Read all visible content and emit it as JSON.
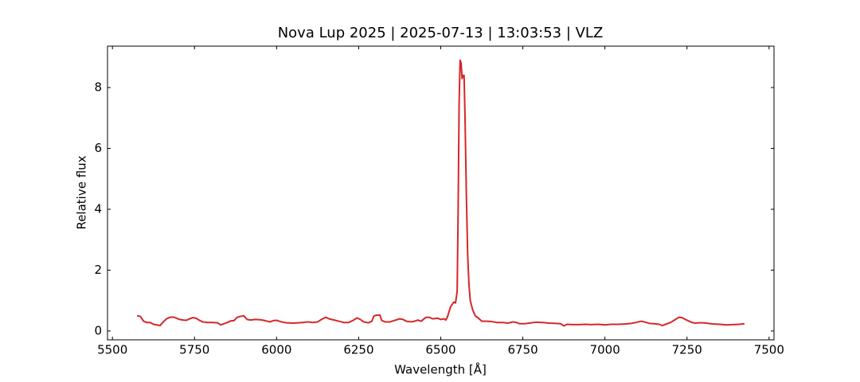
{
  "chart_data": {
    "type": "line",
    "title": "Nova Lup 2025 | 2025-07-13 | 13:03:53 | VLZ",
    "xlabel": "Wavelength [Å]",
    "ylabel": "Relative flux",
    "xlim": [
      5485,
      7515
    ],
    "ylim": [
      -0.29,
      9.36
    ],
    "xticks": [
      5500,
      5750,
      6000,
      6250,
      6500,
      6750,
      7000,
      7250,
      7500
    ],
    "yticks": [
      0,
      2,
      4,
      6,
      8
    ],
    "grid": false,
    "series": [
      {
        "color": "#d62728",
        "x": [
          5575,
          5585,
          5595,
          5605,
          5615,
          5625,
          5635,
          5645,
          5655,
          5665,
          5675,
          5685,
          5695,
          5705,
          5715,
          5725,
          5735,
          5745,
          5755,
          5765,
          5775,
          5790,
          5805,
          5820,
          5830,
          5840,
          5850,
          5860,
          5870,
          5880,
          5890,
          5900,
          5910,
          5920,
          5935,
          5950,
          5965,
          5980,
          5990,
          6000,
          6015,
          6030,
          6050,
          6065,
          6080,
          6095,
          6110,
          6125,
          6140,
          6150,
          6160,
          6175,
          6190,
          6205,
          6220,
          6235,
          6245,
          6255,
          6265,
          6280,
          6290,
          6297,
          6305,
          6315,
          6320,
          6330,
          6345,
          6360,
          6375,
          6385,
          6395,
          6410,
          6420,
          6430,
          6440,
          6455,
          6465,
          6475,
          6490,
          6500,
          6510,
          6515,
          6520,
          6530,
          6540,
          6545,
          6550,
          6553,
          6556,
          6559,
          6562,
          6565,
          6568,
          6571,
          6574,
          6578,
          6582,
          6586,
          6590,
          6597,
          6605,
          6615,
          6625,
          6640,
          6655,
          6670,
          6690,
          6705,
          6720,
          6730,
          6740,
          6755,
          6770,
          6790,
          6810,
          6830,
          6850,
          6865,
          6875,
          6885,
          6900,
          6920,
          6940,
          6960,
          6980,
          7000,
          7020,
          7040,
          7060,
          7080,
          7095,
          7110,
          7120,
          7135,
          7150,
          7165,
          7175,
          7185,
          7200,
          7215,
          7225,
          7235,
          7245,
          7255,
          7265,
          7275,
          7285,
          7300,
          7315,
          7330,
          7350,
          7370,
          7390,
          7410,
          7425
        ],
        "values": [
          0.5,
          0.48,
          0.32,
          0.28,
          0.28,
          0.22,
          0.2,
          0.18,
          0.3,
          0.4,
          0.45,
          0.46,
          0.42,
          0.38,
          0.36,
          0.35,
          0.4,
          0.44,
          0.42,
          0.35,
          0.3,
          0.28,
          0.28,
          0.27,
          0.2,
          0.24,
          0.28,
          0.33,
          0.34,
          0.45,
          0.48,
          0.5,
          0.38,
          0.36,
          0.38,
          0.37,
          0.34,
          0.3,
          0.34,
          0.35,
          0.3,
          0.27,
          0.26,
          0.27,
          0.28,
          0.3,
          0.28,
          0.3,
          0.4,
          0.45,
          0.4,
          0.36,
          0.32,
          0.28,
          0.28,
          0.36,
          0.43,
          0.38,
          0.3,
          0.27,
          0.32,
          0.5,
          0.52,
          0.52,
          0.35,
          0.3,
          0.3,
          0.35,
          0.4,
          0.38,
          0.32,
          0.3,
          0.32,
          0.36,
          0.32,
          0.45,
          0.45,
          0.4,
          0.42,
          0.38,
          0.4,
          0.36,
          0.45,
          0.8,
          0.95,
          0.92,
          1.3,
          4.0,
          7.5,
          8.9,
          8.8,
          8.3,
          8.4,
          8.4,
          7.0,
          4.5,
          2.5,
          1.5,
          1.0,
          0.7,
          0.5,
          0.42,
          0.32,
          0.32,
          0.31,
          0.28,
          0.28,
          0.26,
          0.3,
          0.28,
          0.24,
          0.24,
          0.26,
          0.29,
          0.28,
          0.26,
          0.25,
          0.24,
          0.17,
          0.22,
          0.21,
          0.21,
          0.22,
          0.21,
          0.22,
          0.2,
          0.22,
          0.22,
          0.23,
          0.25,
          0.28,
          0.32,
          0.3,
          0.25,
          0.24,
          0.22,
          0.18,
          0.22,
          0.28,
          0.38,
          0.45,
          0.44,
          0.38,
          0.33,
          0.28,
          0.26,
          0.27,
          0.27,
          0.25,
          0.23,
          0.22,
          0.2,
          0.21,
          0.22,
          0.24
        ]
      }
    ]
  }
}
